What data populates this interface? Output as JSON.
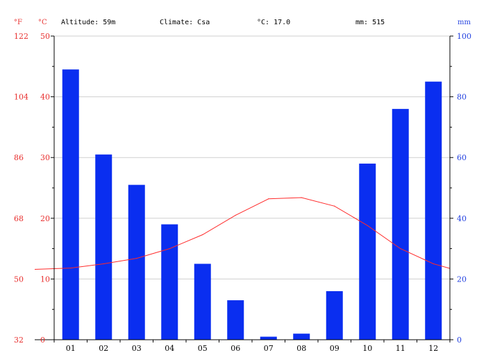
{
  "header": {
    "unit_f": "°F",
    "unit_c": "°C",
    "unit_mm": "mm",
    "altitude": "Altitude: 59m",
    "climate": "Climate: Csa",
    "avg_temp": "°C: 17.0",
    "total_precip": "mm: 515"
  },
  "colors": {
    "temp_axis": "#e8302f",
    "precip_axis": "#2442e0",
    "bar": "#0a2ef0",
    "line": "#ff2a2a",
    "grid": "#cfcfcf"
  },
  "chart_data": {
    "type": "bar",
    "categories": [
      "01",
      "02",
      "03",
      "04",
      "05",
      "06",
      "07",
      "08",
      "09",
      "10",
      "11",
      "12"
    ],
    "series": [
      {
        "kind": "bar",
        "axis": "right",
        "values": [
          89,
          61,
          51,
          38,
          25,
          13,
          1,
          2,
          16,
          58,
          76,
          85
        ]
      },
      {
        "kind": "line",
        "axis": "left",
        "values": [
          11.8,
          12.5,
          13.4,
          15.0,
          17.3,
          20.5,
          23.2,
          23.4,
          22.0,
          18.8,
          15.0,
          12.5
        ]
      }
    ],
    "left_axis": {
      "ticks": [
        0,
        10,
        20,
        30,
        40,
        50
      ],
      "ylim": [
        0,
        50
      ]
    },
    "far_left_axis": {
      "ticks": [
        32,
        50,
        68,
        86,
        104,
        122
      ]
    },
    "right_axis": {
      "ticks": [
        0,
        20,
        40,
        60,
        80,
        100
      ],
      "ylim": [
        0,
        100
      ]
    },
    "grid": true
  }
}
